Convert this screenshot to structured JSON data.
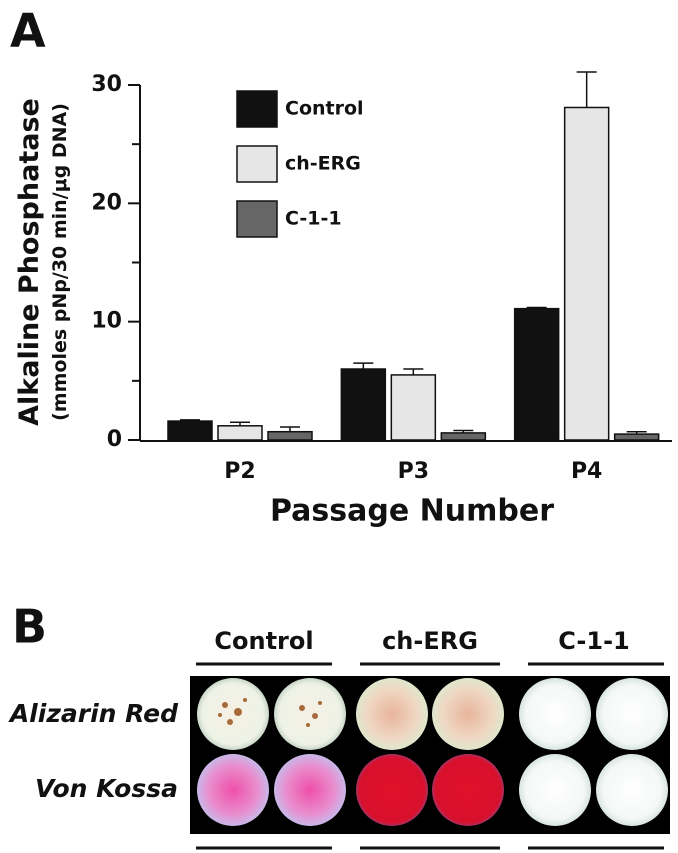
{
  "chart_data": {
    "type": "bar",
    "panel_label": "A",
    "y_label": [
      "Alkaline Phosphatase",
      "(mmoles pNp/30 min/μg DNA)"
    ],
    "x_label": "Passage Number",
    "categories": [
      "P2",
      "P3",
      "P4"
    ],
    "series": [
      {
        "name": "Control",
        "color": "#111111",
        "values": [
          1.6,
          6.0,
          11.1
        ],
        "errors": [
          0.1,
          0.5,
          0.1
        ]
      },
      {
        "name": "ch-ERG",
        "color": "#e6e6e6",
        "values": [
          1.2,
          5.5,
          28.1
        ],
        "errors": [
          0.3,
          0.5,
          3.0
        ]
      },
      {
        "name": "C-1-1",
        "color": "#666666",
        "values": [
          0.7,
          0.6,
          0.5
        ],
        "errors": [
          0.4,
          0.2,
          0.2
        ]
      }
    ],
    "ylim": [
      0,
      30
    ],
    "yticks": [
      0,
      10,
      20,
      30
    ],
    "yminor_ticks": [
      5,
      15,
      25
    ],
    "legend": "upper-left"
  },
  "panel_b": {
    "label": "B",
    "columns": [
      "Control",
      "ch-ERG",
      "C-1-1"
    ],
    "rows": [
      "Alizarin Red",
      "Von Kossa"
    ]
  }
}
